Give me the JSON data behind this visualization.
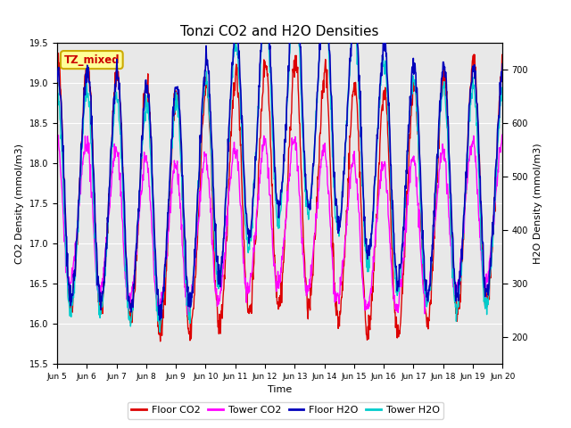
{
  "title": "Tonzi CO2 and H2O Densities",
  "xlabel": "Time",
  "ylabel_left": "CO2 Density (mmol/m3)",
  "ylabel_right": "H2O Density (mmol/m3)",
  "ylim_left": [
    15.5,
    19.5
  ],
  "ylim_right": [
    150,
    750
  ],
  "xtick_labels": [
    "Jun 5",
    "Jun 6",
    "Jun 7",
    "Jun 8",
    "Jun 9",
    "Jun 10",
    "Jun 11",
    "Jun 12",
    "Jun 13",
    "Jun 14",
    "Jun 15",
    "Jun 16",
    "Jun 17",
    "Jun 18",
    "Jun 19",
    "Jun 20"
  ],
  "annotation_text": "TZ_mixed",
  "annotation_color": "#cc0000",
  "annotation_bg": "#ffff99",
  "annotation_border": "#ccaa00",
  "colors": {
    "floor_co2": "#dd0000",
    "tower_co2": "#ff00ff",
    "floor_h2o": "#0000bb",
    "tower_h2o": "#00cccc"
  },
  "legend_labels": [
    "Floor CO2",
    "Tower CO2",
    "Floor H2O",
    "Tower H2O"
  ],
  "plot_bg": "#e8e8e8",
  "n_points": 1080,
  "seed": 42
}
